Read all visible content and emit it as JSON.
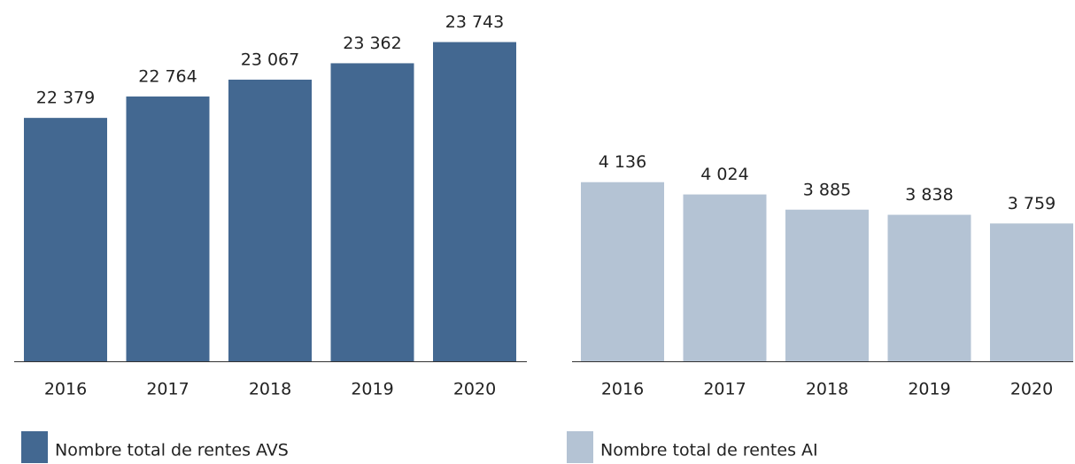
{
  "chart_data": [
    {
      "type": "bar",
      "categories": [
        "2016",
        "2017",
        "2018",
        "2019",
        "2020"
      ],
      "series": [
        {
          "name": "Nombre total de rentes AVS",
          "color": "#436891",
          "values": [
            22379,
            22764,
            23067,
            23362,
            23743
          ],
          "value_labels": [
            "22 379",
            "22 764",
            "23 067",
            "23 362",
            "23 743"
          ]
        }
      ],
      "ylim": [
        18000,
        24500
      ]
    },
    {
      "type": "bar",
      "categories": [
        "2016",
        "2017",
        "2018",
        "2019",
        "2020"
      ],
      "series": [
        {
          "name": "Nombre total de rentes AI",
          "color": "#b4c3d4",
          "values": [
            4136,
            4024,
            3885,
            3838,
            3759
          ],
          "value_labels": [
            "4 136",
            "4 024",
            "3 885",
            "3 838",
            "3 759"
          ]
        }
      ],
      "ylim": [
        2500,
        5800
      ]
    }
  ]
}
